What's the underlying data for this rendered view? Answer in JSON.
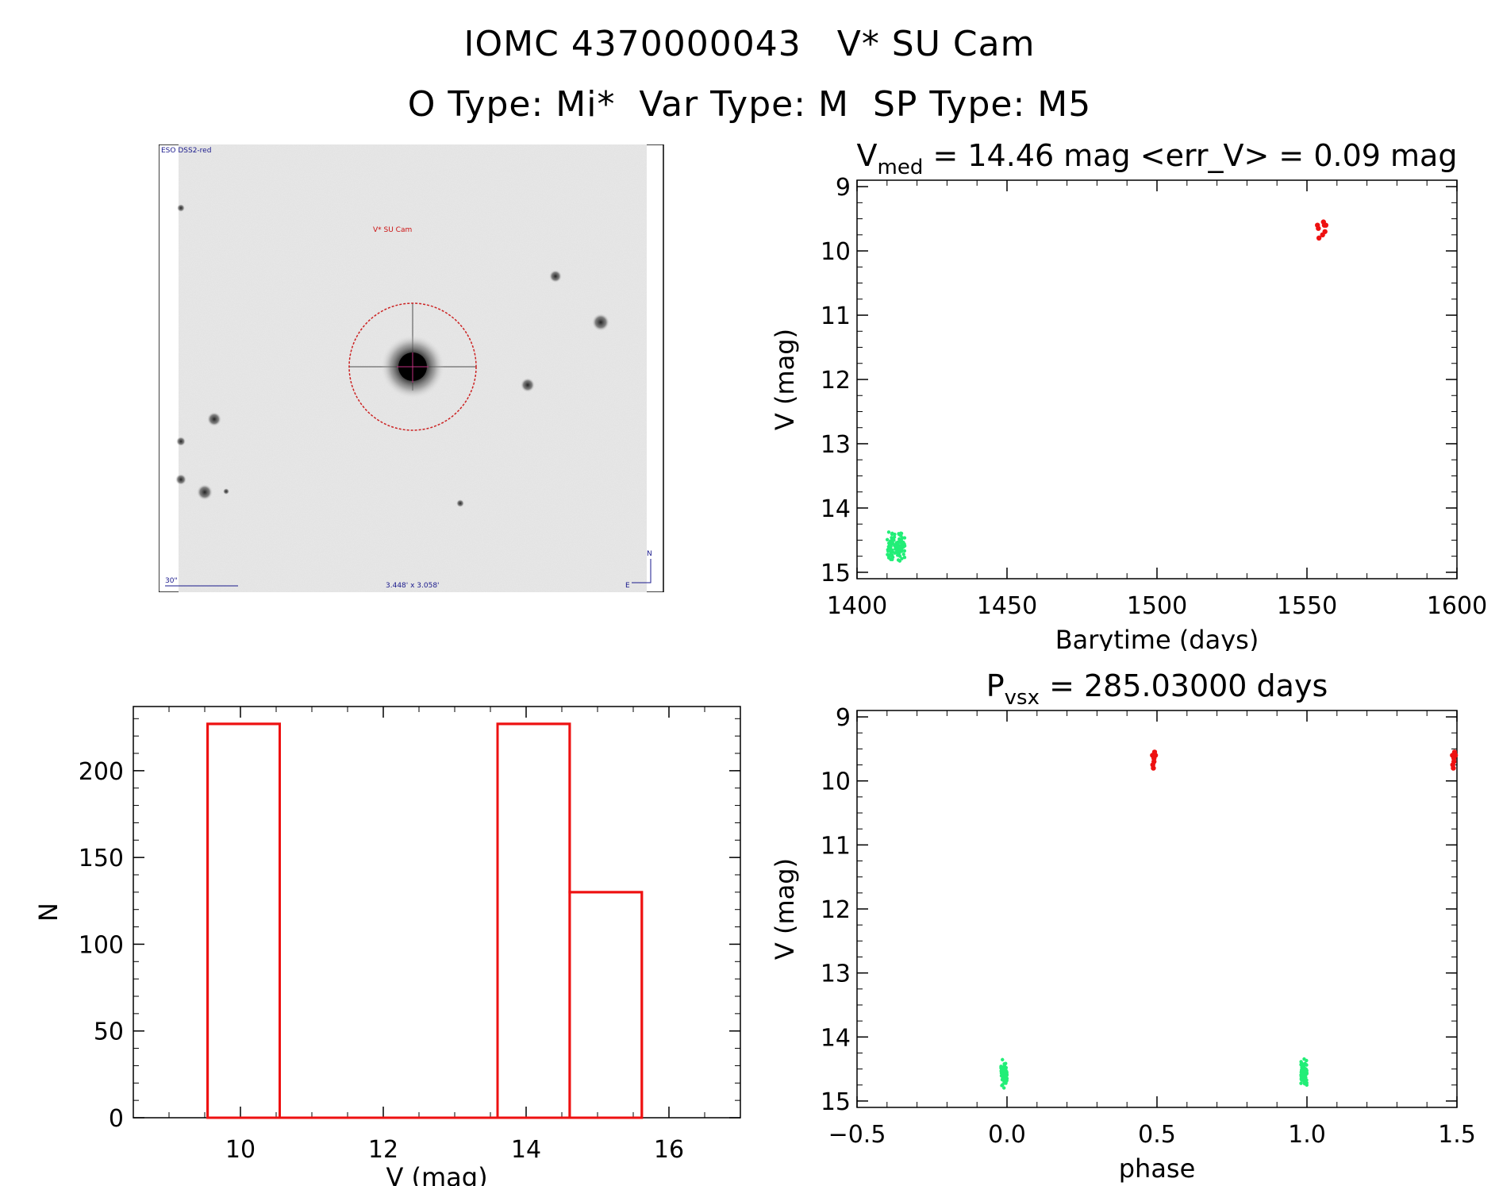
{
  "header": {
    "title_line1": "IOMC 4370000043   V* SU Cam",
    "title_line2": "O Type: Mi*  Var Type: M  SP Type: M5"
  },
  "sky_image": {
    "survey_label": "ESO DSS2-red",
    "object_label": "V* SU Cam",
    "scale_label": "30\"",
    "fov_label": "3.448' x 3.058'",
    "north_label": "N",
    "east_label": "E"
  },
  "colors": {
    "green": "#22ee77",
    "red": "#ee1111",
    "hist": "#ee1111"
  },
  "chart_data": [
    {
      "id": "lightcurve",
      "type": "scatter",
      "title_main": "V",
      "title_sub": "med",
      "title_rest": " = 14.46 mag <err_V> = 0.09 mag",
      "xlabel": "Barytime (days)",
      "ylabel": "V (mag)",
      "xlim": [
        1400,
        1600
      ],
      "ylim": [
        15.1,
        8.9
      ],
      "xticks": [
        1400,
        1450,
        1500,
        1550,
        1600
      ],
      "yticks": [
        9,
        10,
        11,
        12,
        13,
        14,
        15
      ],
      "series": [
        {
          "color": "green",
          "x_range": [
            1410,
            1416
          ],
          "y_range": [
            14.3,
            14.9
          ],
          "count": 110
        },
        {
          "color": "red",
          "points": [
            [
              1553.5,
              9.6
            ],
            [
              1553.8,
              9.65
            ],
            [
              1554.0,
              9.8
            ],
            [
              1555.5,
              9.55
            ],
            [
              1555.8,
              9.6
            ],
            [
              1556.0,
              9.7
            ],
            [
              1555.2,
              9.75
            ],
            [
              1556.3,
              9.6
            ]
          ]
        }
      ]
    },
    {
      "id": "phased",
      "type": "scatter",
      "title_main": "P",
      "title_sub": "vsx",
      "title_rest": " = 285.03000 days",
      "xlabel": "phase",
      "ylabel": "V (mag)",
      "xlim": [
        -0.5,
        1.5
      ],
      "ylim": [
        15.1,
        8.9
      ],
      "xticks": [
        -0.5,
        0.0,
        0.5,
        1.0,
        1.5
      ],
      "xtick_labels": [
        "−0.5",
        "0.0",
        "0.5",
        "1.0",
        "1.5"
      ],
      "yticks": [
        9,
        10,
        11,
        12,
        13,
        14,
        15
      ],
      "series": [
        {
          "color": "green",
          "x_range": [
            -0.02,
            0.0
          ],
          "y_range": [
            14.3,
            14.85
          ],
          "count": 80
        },
        {
          "color": "green",
          "x_range": [
            0.98,
            1.0
          ],
          "y_range": [
            14.3,
            14.85
          ],
          "count": 80
        },
        {
          "color": "red",
          "points": [
            [
              0.485,
              9.6
            ],
            [
              0.49,
              9.65
            ],
            [
              0.488,
              9.8
            ],
            [
              0.492,
              9.55
            ],
            [
              0.495,
              9.6
            ],
            [
              0.49,
              9.7
            ],
            [
              0.486,
              9.75
            ]
          ]
        },
        {
          "color": "red",
          "points": [
            [
              1.485,
              9.6
            ],
            [
              1.49,
              9.65
            ],
            [
              1.488,
              9.8
            ],
            [
              1.492,
              9.55
            ],
            [
              1.495,
              9.6
            ],
            [
              1.49,
              9.7
            ],
            [
              1.486,
              9.75
            ]
          ]
        }
      ]
    },
    {
      "id": "histogram",
      "type": "bar",
      "xlabel": "V (mag)",
      "ylabel": "N",
      "xlim": [
        8.5,
        17.0
      ],
      "ylim": [
        0,
        237
      ],
      "xticks": [
        10,
        12,
        14,
        16
      ],
      "yticks": [
        0,
        50,
        100,
        150,
        200
      ],
      "bins": [
        {
          "x0": 9.54,
          "x1": 10.55,
          "n": 227
        },
        {
          "x0": 10.55,
          "x1": 13.6,
          "n": 0
        },
        {
          "x0": 13.6,
          "x1": 14.61,
          "n": 227
        },
        {
          "x0": 14.61,
          "x1": 15.62,
          "n": 130
        }
      ]
    }
  ]
}
